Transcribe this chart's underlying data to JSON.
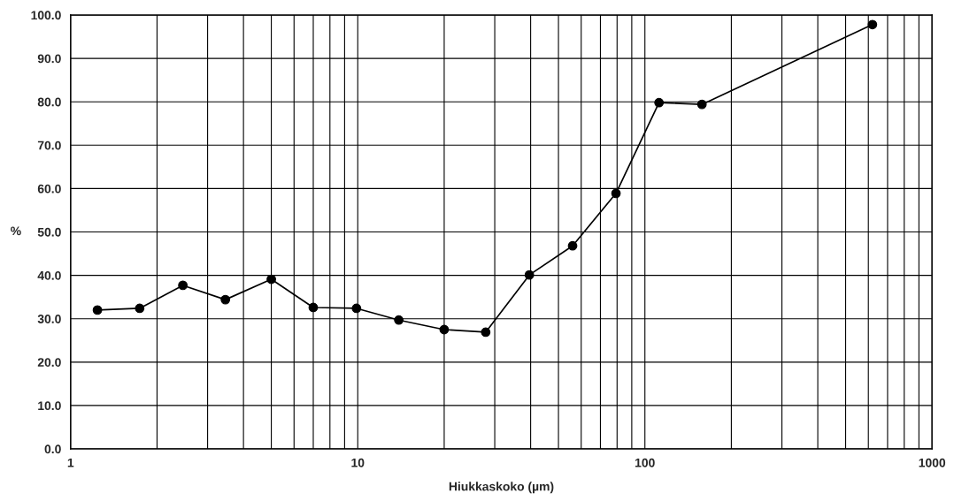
{
  "chart_data": {
    "type": "line",
    "xlabel": "Hiukkaskoko (µm)",
    "ylabel": "%",
    "log": "x",
    "grid": true,
    "marker": "circle",
    "line_style": "solid",
    "x": [
      1.24,
      1.74,
      2.46,
      3.46,
      5.0,
      7.0,
      9.9,
      13.9,
      20.0,
      27.9,
      39.6,
      56.0,
      79.3,
      112,
      158,
      620
    ],
    "series": [
      {
        "color": "#000000",
        "values": [
          32.0,
          32.4,
          37.7,
          34.4,
          39.1,
          32.6,
          32.4,
          29.7,
          27.5,
          26.9,
          40.1,
          46.8,
          58.9,
          79.8,
          79.4,
          97.8
        ]
      }
    ],
    "xlim": [
      1,
      1000
    ],
    "xticks": [
      1,
      10,
      100,
      1000
    ],
    "ylim": [
      0,
      100
    ],
    "yticks": [
      {
        "value": 0,
        "label": "0.0"
      },
      {
        "value": 10,
        "label": "10.0"
      },
      {
        "value": 20,
        "label": "20.0"
      },
      {
        "value": 30,
        "label": "30.0"
      },
      {
        "value": 40,
        "label": "40.0"
      },
      {
        "value": 50,
        "label": "50.0"
      },
      {
        "value": 60,
        "label": "60.0"
      },
      {
        "value": 70,
        "label": "70.0"
      },
      {
        "value": 80,
        "label": "80.0"
      },
      {
        "value": 90,
        "label": "90.0"
      },
      {
        "value": 100,
        "label": "100.0"
      }
    ]
  }
}
